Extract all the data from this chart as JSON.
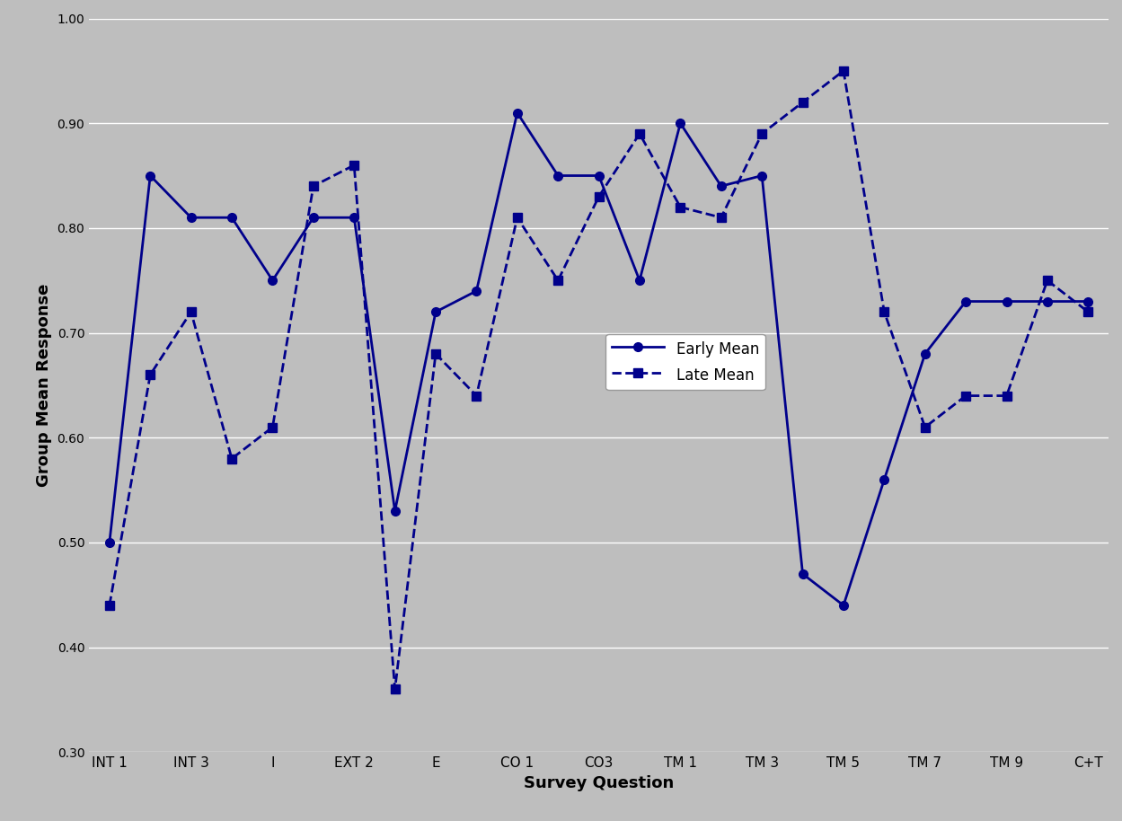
{
  "categories_labels": [
    "INT 1",
    "INT 3",
    "I",
    "EXT 2",
    "E",
    "CO 1",
    "CO3",
    "TM 1",
    "TM 3",
    "TM 5",
    "TM 7",
    "TM 9",
    "C+T"
  ],
  "categories_x": [
    0,
    2,
    4,
    6,
    8,
    10,
    12,
    14,
    16,
    18,
    20,
    22,
    24
  ],
  "early_x": [
    0,
    1,
    2,
    3,
    4,
    5,
    6,
    7,
    8,
    9,
    10,
    11,
    12,
    13,
    14,
    15,
    16,
    17,
    18,
    19,
    20,
    21,
    22,
    23,
    24
  ],
  "early_y": [
    0.5,
    0.85,
    0.81,
    0.81,
    0.75,
    0.81,
    0.81,
    0.53,
    0.72,
    0.74,
    0.91,
    0.85,
    0.85,
    0.75,
    0.9,
    0.84,
    0.85,
    0.47,
    0.44,
    0.56,
    0.68,
    0.73,
    0.73,
    0.73,
    0.73
  ],
  "late_x": [
    0,
    1,
    2,
    3,
    4,
    5,
    6,
    7,
    8,
    9,
    10,
    11,
    12,
    13,
    14,
    15,
    16,
    17,
    18,
    19,
    20,
    21,
    22,
    23,
    24
  ],
  "late_y": [
    0.44,
    0.66,
    0.72,
    0.58,
    0.61,
    0.84,
    0.86,
    0.36,
    0.68,
    0.64,
    0.81,
    0.75,
    0.83,
    0.89,
    0.82,
    0.81,
    0.89,
    0.92,
    0.95,
    0.72,
    0.61,
    0.64,
    0.64,
    0.75,
    0.72
  ],
  "ylabel": "Group Mean Response",
  "xlabel": "Survey Question",
  "ylim": [
    0.3,
    1.0
  ],
  "yticks": [
    0.3,
    0.4,
    0.5,
    0.6,
    0.7,
    0.8,
    0.9,
    1.0
  ],
  "line_color": "#00008B",
  "bg_color": "#BEBEBE",
  "legend_early": "Early Mean",
  "legend_late": "Late Mean"
}
